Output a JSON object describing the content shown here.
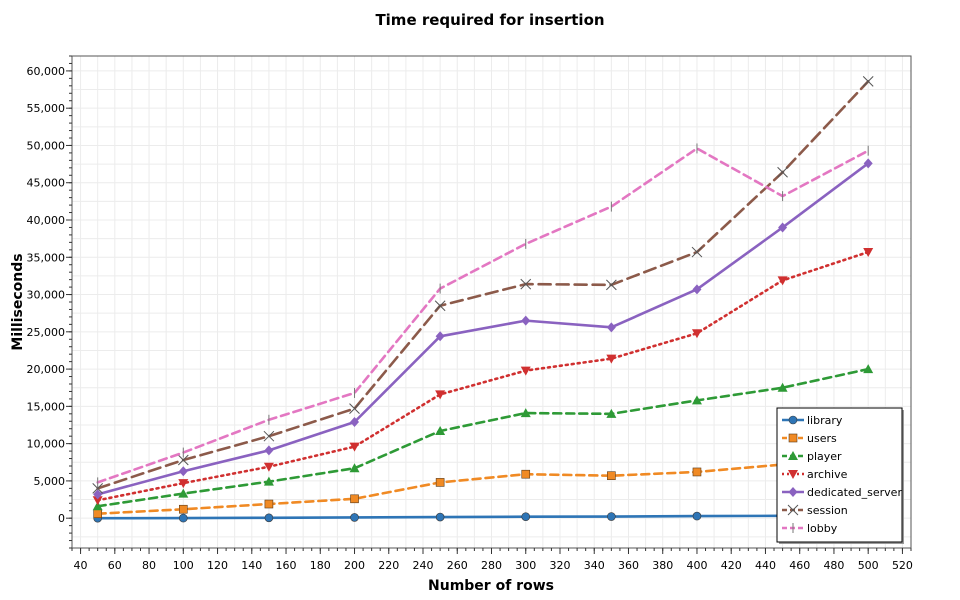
{
  "chart_data": {
    "type": "line",
    "title": "Time required for insertion",
    "xlabel": "Number of rows",
    "ylabel": "Milliseconds",
    "xlim": [
      35,
      525
    ],
    "ylim": [
      -4000,
      62000
    ],
    "x_ticks": [
      40,
      60,
      80,
      100,
      120,
      140,
      160,
      180,
      200,
      220,
      240,
      260,
      280,
      300,
      320,
      340,
      360,
      380,
      400,
      420,
      440,
      460,
      480,
      500,
      520
    ],
    "y_ticks": [
      0,
      5000,
      10000,
      15000,
      20000,
      25000,
      30000,
      35000,
      40000,
      45000,
      50000,
      55000,
      60000
    ],
    "y_tick_labels": [
      "0",
      "5,000",
      "10,000",
      "15,000",
      "20,000",
      "25,000",
      "30,000",
      "35,000",
      "40,000",
      "45,000",
      "50,000",
      "55,000",
      "60,000"
    ],
    "grid": true,
    "legend_position": "bottom-right",
    "x": [
      50,
      100,
      150,
      200,
      250,
      300,
      350,
      400,
      450,
      500
    ],
    "series": [
      {
        "name": "library",
        "color": "#2e75b6",
        "dash": "solid",
        "marker": "circle",
        "values": [
          0,
          10,
          50,
          100,
          150,
          200,
          220,
          280,
          320,
          380
        ]
      },
      {
        "name": "users",
        "color": "#f08a24",
        "dash": "dash",
        "marker": "square",
        "values": [
          600,
          1200,
          1900,
          2600,
          4800,
          5900,
          5700,
          6200,
          7200,
          8500
        ]
      },
      {
        "name": "player",
        "color": "#2e9a36",
        "dash": "dash",
        "marker": "triangle-up",
        "values": [
          1600,
          3300,
          4900,
          6700,
          11700,
          14100,
          14000,
          15800,
          17500,
          20000
        ]
      },
      {
        "name": "archive",
        "color": "#d03030",
        "dash": "dot",
        "marker": "triangle-down",
        "values": [
          2400,
          4700,
          6900,
          9600,
          16600,
          19800,
          21400,
          24800,
          31900,
          35700
        ]
      },
      {
        "name": "dedicated_server",
        "color": "#8a62c0",
        "dash": "solid",
        "marker": "diamond",
        "values": [
          3200,
          6300,
          9100,
          12900,
          24400,
          26500,
          25600,
          30700,
          39000,
          47600
        ]
      },
      {
        "name": "session",
        "color": "#8c5a4a",
        "dash": "longdash",
        "marker": "x",
        "values": [
          4000,
          7800,
          11000,
          14700,
          28500,
          31400,
          31300,
          35700,
          46400,
          58600
        ]
      },
      {
        "name": "lobby",
        "color": "#e377c2",
        "dash": "dash",
        "marker": "bar",
        "values": [
          4800,
          8800,
          13200,
          16800,
          30800,
          36800,
          41800,
          49600,
          43200,
          49300
        ]
      }
    ]
  }
}
